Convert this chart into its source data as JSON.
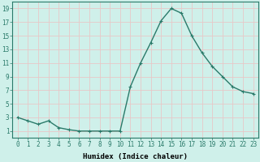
{
  "x": [
    0,
    1,
    2,
    3,
    4,
    5,
    6,
    7,
    8,
    9,
    10,
    11,
    12,
    13,
    14,
    15,
    16,
    17,
    18,
    19,
    20,
    21,
    22,
    23
  ],
  "y": [
    3,
    2.5,
    2,
    2.5,
    1.5,
    1.2,
    1.0,
    1.0,
    1.0,
    1.0,
    1.0,
    7.5,
    11.0,
    14.0,
    17.2,
    19.0,
    18.3,
    15.0,
    12.5,
    10.5,
    9.0,
    7.5,
    6.8,
    6.5
  ],
  "line_color": "#2a7a6a",
  "marker": "+",
  "marker_size": 3,
  "bg_color": "#cff0ea",
  "grid_color": "#e8c8c8",
  "xlabel": "Humidex (Indice chaleur)",
  "xtick_labels": [
    "0",
    "1",
    "2",
    "3",
    "4",
    "5",
    "6",
    "7",
    "8",
    "9",
    "10",
    "11",
    "12",
    "13",
    "14",
    "15",
    "16",
    "17",
    "18",
    "19",
    "20",
    "21",
    "22",
    "23"
  ],
  "xticks": [
    0,
    1,
    2,
    3,
    4,
    5,
    6,
    7,
    8,
    9,
    10,
    11,
    12,
    13,
    14,
    15,
    16,
    17,
    18,
    19,
    20,
    21,
    22,
    23
  ],
  "ytick_labels": [
    "1",
    "3",
    "5",
    "7",
    "9",
    "11",
    "13",
    "15",
    "17",
    "19"
  ],
  "yticks": [
    1,
    3,
    5,
    7,
    9,
    11,
    13,
    15,
    17,
    19
  ],
  "ylim": [
    0,
    20
  ],
  "xlim": [
    -0.5,
    23.5
  ],
  "xlabel_fontsize": 6.5,
  "tick_fontsize": 5.5,
  "line_width": 1.0,
  "marker_edge_width": 0.8
}
